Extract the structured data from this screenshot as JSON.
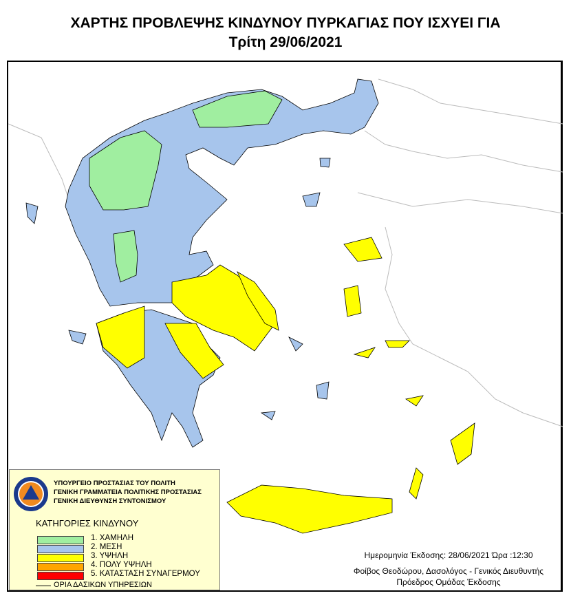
{
  "title": "ΧΑΡΤΗΣ ΠΡΟΒΛΕΨΗΣ ΚΙΝΔΥΝΟΥ ΠΥΡΚΑΓΙΑΣ ΠΟΥ ΙΣΧΥΕΙ ΓΙΑ",
  "subtitle": "Τρίτη 29/06/2021",
  "legend": {
    "org": [
      "ΥΠΟΥΡΓΕΙΟ ΠΡΟΣΤΑΣΙΑΣ ΤΟΥ ΠΟΛΙΤΗ",
      "ΓΕΝΙΚΗ ΓΡΑΜΜΑΤΕΙΑ ΠΟΛΙΤΙΚΗΣ ΠΡΟΣΤΑΣΙΑΣ",
      "ΓΕΝΙΚΗ ΔΙΕΥΘΥΝΣΗ ΣΥΝΤΟΝΙΣΜΟΥ"
    ],
    "logo_text": "ΠΟΛΙΤΙΚΗ ΠΡΟΣΤΑΣΙΑ · ΕΛΛΑΔΑ",
    "heading": "ΚΑΤΗΓΟΡΙΕΣ ΚΙΝΔΥΝΟΥ",
    "categories": [
      {
        "label": "1. ΧΑΜΗΛΗ",
        "color": "#a0eea0"
      },
      {
        "label": "2. ΜΕΣΗ",
        "color": "#a7c5ec"
      },
      {
        "label": "3. ΥΨΗΛΗ",
        "color": "#ffff00"
      },
      {
        "label": "4. ΠΟΛΥ ΥΨΗΛΗ",
        "color": "#ffa500"
      },
      {
        "label": "5. ΚΑΤΑΣΤΑΣΗ ΣΥΝΑΓΕΡΜΟΥ",
        "color": "#ff0000"
      }
    ],
    "boundary": "ΟΡΙΑ ΔΑΣΙΚΩΝ ΥΠΗΡΕΣΙΩΝ"
  },
  "issue": {
    "date_line": "Ημερομηνία Έκδοσης: 28/06/2021  Ώρα :12:30",
    "author": "Φοίβος Θεοδώρου, Δασολόγος - Γενικός Διευθυντής",
    "role": "Πρόεδρος Ομάδας Έκδοσης"
  }
}
